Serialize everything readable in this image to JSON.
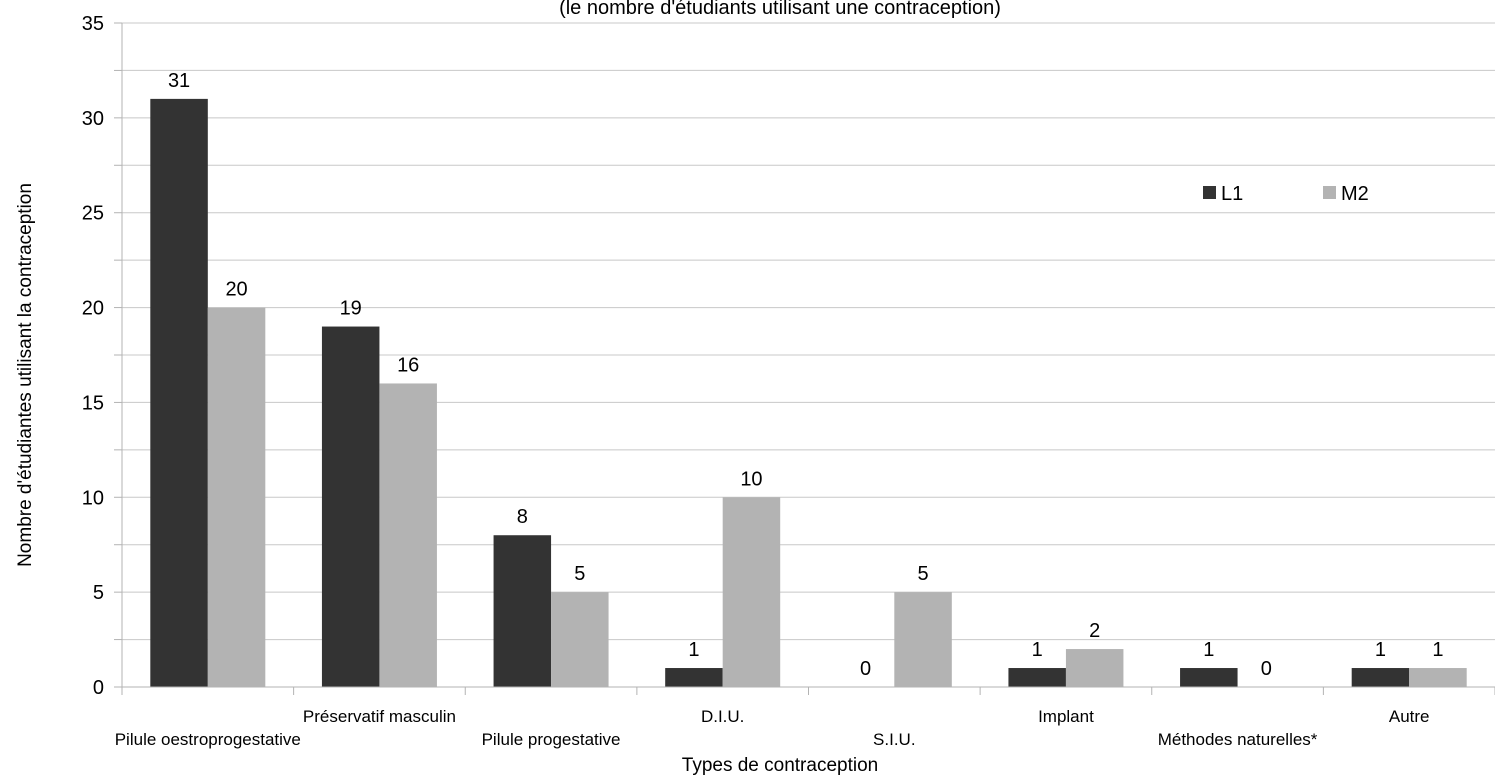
{
  "chart_data": {
    "type": "bar",
    "title": "(le nombre d'étudiants utilisant une contraception)",
    "xlabel": "Types de contraception",
    "ylabel": "Nombre d'étudiantes utilisant la contraception",
    "categories": [
      "Pilule oestroprogestative",
      "Préservatif masculin",
      "Pilule progestative",
      "D.I.U.",
      "S.I.U.",
      "Implant",
      "Méthodes naturelles*",
      "Autre"
    ],
    "series": [
      {
        "name": "L1",
        "color": "#333333",
        "values": [
          31,
          19,
          8,
          1,
          0,
          1,
          1,
          1
        ]
      },
      {
        "name": "M2",
        "color": "#b3b3b3",
        "values": [
          20,
          16,
          5,
          10,
          5,
          2,
          0,
          1
        ]
      }
    ],
    "ylim": [
      0,
      35
    ],
    "yticks": [
      0,
      5,
      10,
      15,
      20,
      25,
      30,
      35
    ],
    "grid": true,
    "legend": "top-right"
  }
}
